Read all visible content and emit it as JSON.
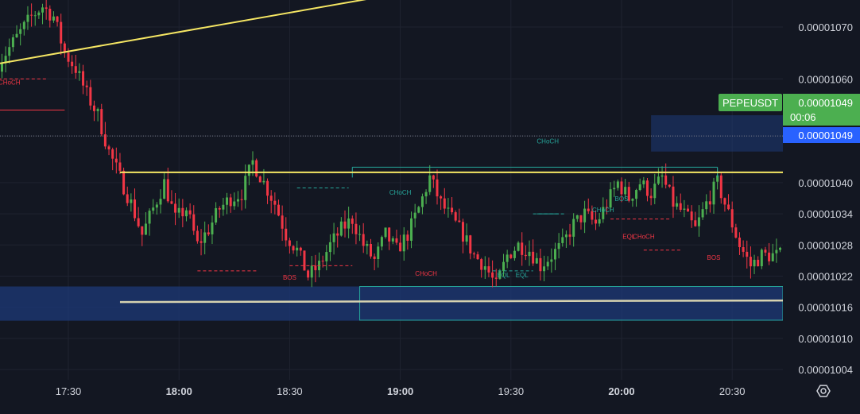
{
  "chart_data": {
    "type": "candlestick",
    "symbol": "PEPEUSDT",
    "last_price": "0.00001049",
    "countdown": "00:06",
    "price_line_value": "0.00001049",
    "y_axis": {
      "ticks": [
        "0.00001070",
        "0.00001060",
        "0.00001049",
        "0.00001040",
        "0.00001034",
        "0.00001028",
        "0.00001022",
        "0.00001016",
        "0.00001010",
        "0.00001004"
      ],
      "ylim": [
        1.002e-05,
        1.077e-05
      ]
    },
    "x_axis": {
      "ticks": [
        "17:30",
        "18:00",
        "18:30",
        "19:00",
        "19:30",
        "20:00",
        "20:30"
      ]
    },
    "annotations": [
      {
        "text": "CHoCH",
        "kind": "bear"
      },
      {
        "text": "BOS",
        "kind": "bear"
      },
      {
        "text": "CHoCH",
        "kind": "bull"
      },
      {
        "text": "CHoCH",
        "kind": "bear"
      },
      {
        "text": "CHoCH",
        "kind": "bull"
      },
      {
        "text": "BOS",
        "kind": "bull"
      },
      {
        "text": "EQL",
        "kind": "bull"
      },
      {
        "text": "EQL",
        "kind": "bull"
      },
      {
        "text": "EQL",
        "kind": "bear"
      },
      {
        "text": "CHoCH",
        "kind": "bear"
      },
      {
        "text": "BOS",
        "kind": "bear"
      },
      {
        "text": "CHoCH",
        "kind": "bull"
      },
      {
        "text": "CHoCH",
        "kind": "bull"
      }
    ],
    "colors": {
      "up": "#4caf50",
      "down": "#f23645",
      "background": "#131722",
      "grid": "#1f2330",
      "trendline": "#f5e663",
      "zone": "#1e3a78",
      "price_badge": "#2962ff",
      "symbol_badge": "#4caf50"
    },
    "candles_note": "price series reconstructed approximately from the screenshot"
  },
  "ui": {
    "settings_icon": "gear-icon"
  }
}
